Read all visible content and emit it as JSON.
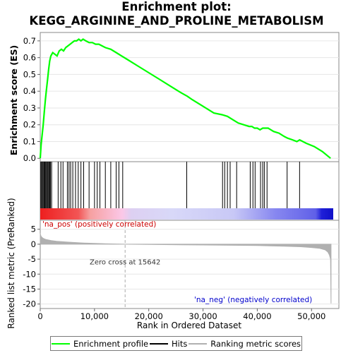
{
  "title": "Enrichment plot: KEGG_ARGININE_AND_PROLINE_METABOLISM",
  "colors": {
    "es_line": "#00ff00",
    "hits": "#000000",
    "metric": "#b0b0b0",
    "zero_cross_line": "#aaaaaa",
    "pos_end": "#ee2222",
    "neg_end": "#2222ee"
  },
  "chart_data": [
    {
      "name": "enrichment-score-panel",
      "type": "line",
      "ylabel": "Enrichment score (ES)",
      "xlim": [
        0,
        54000
      ],
      "ylim": [
        -0.02,
        0.75
      ],
      "yticks": [
        0.0,
        0.1,
        0.2,
        0.3,
        0.4,
        0.5,
        0.6,
        0.7
      ],
      "series": [
        {
          "name": "Enrichment profile",
          "x": [
            0,
            150,
            350,
            550,
            750,
            950,
            1150,
            1350,
            1550,
            1750,
            1950,
            2300,
            2700,
            3100,
            3500,
            3900,
            4300,
            4700,
            5100,
            5500,
            5900,
            6300,
            6700,
            7100,
            7500,
            7900,
            8400,
            9000,
            9600,
            10200,
            10800,
            11400,
            12000,
            13000,
            14000,
            15000,
            16000,
            18000,
            20000,
            22000,
            24000,
            26000,
            27100,
            28000,
            30000,
            32000,
            33500,
            34500,
            35500,
            36500,
            37500,
            38500,
            39000,
            39500,
            40000,
            40500,
            41000,
            41500,
            42000,
            43000,
            44000,
            45000,
            45600,
            46500,
            47300,
            47800,
            49000,
            50500,
            52000,
            53500
          ],
          "y": [
            0.0,
            0.08,
            0.14,
            0.2,
            0.28,
            0.35,
            0.41,
            0.47,
            0.53,
            0.58,
            0.61,
            0.63,
            0.62,
            0.61,
            0.64,
            0.65,
            0.64,
            0.66,
            0.67,
            0.68,
            0.69,
            0.7,
            0.7,
            0.71,
            0.7,
            0.71,
            0.7,
            0.69,
            0.69,
            0.68,
            0.68,
            0.67,
            0.66,
            0.65,
            0.63,
            0.61,
            0.59,
            0.55,
            0.51,
            0.47,
            0.43,
            0.39,
            0.37,
            0.35,
            0.31,
            0.27,
            0.26,
            0.25,
            0.23,
            0.21,
            0.2,
            0.19,
            0.19,
            0.18,
            0.18,
            0.17,
            0.18,
            0.18,
            0.18,
            0.16,
            0.15,
            0.13,
            0.12,
            0.11,
            0.1,
            0.11,
            0.09,
            0.07,
            0.04,
            0.0
          ]
        }
      ]
    },
    {
      "name": "hits-panel",
      "type": "scatter",
      "series": [
        {
          "name": "Hits",
          "x": [
            100,
            250,
            400,
            550,
            700,
            850,
            1000,
            1150,
            1300,
            1450,
            1600,
            1750,
            1900,
            2100,
            3300,
            3800,
            4200,
            5000,
            5300,
            5600,
            6000,
            6500,
            7000,
            7500,
            8000,
            9000,
            10000,
            10500,
            11000,
            12000,
            13000,
            14000,
            14500,
            15200,
            27000,
            33600,
            34000,
            34500,
            35000,
            36200,
            38700,
            39200,
            39600,
            40600,
            41000,
            41300,
            41800,
            45500,
            47800
          ]
        }
      ]
    },
    {
      "name": "ranked-metric-panel",
      "type": "area",
      "ylabel": "Ranked list metric (PreRanked)",
      "xlabel": "Rank in Ordered Dataset",
      "xlim": [
        0,
        54000
      ],
      "ylim": [
        -21.5,
        8.0
      ],
      "xticks": [
        0,
        10000,
        20000,
        30000,
        40000,
        50000
      ],
      "xticklabels": [
        "0",
        "10,000",
        "20,000",
        "30,000",
        "40,000",
        "50,000"
      ],
      "yticks": [
        5,
        0,
        -5,
        -10,
        -15,
        -20
      ],
      "annotations": {
        "zero_cross_x": 15642,
        "zero_cross_label": "Zero cross at 15642",
        "pos_label": "'na_pos' (positively correlated)",
        "neg_label": "'na_neg' (negatively correlated)"
      },
      "series": [
        {
          "name": "Ranking metric scores",
          "x": [
            0,
            100,
            300,
            600,
            1000,
            2000,
            3000,
            5000,
            8000,
            12000,
            15642,
            20000,
            30000,
            40000,
            45000,
            48000,
            50000,
            51500,
            52500,
            53000,
            53300,
            53500,
            53600
          ],
          "y": [
            3.6,
            2.8,
            2.3,
            1.9,
            1.6,
            1.2,
            1.0,
            0.7,
            0.4,
            0.15,
            0.0,
            -0.1,
            -0.25,
            -0.45,
            -0.65,
            -0.85,
            -1.1,
            -1.4,
            -1.9,
            -2.6,
            -3.6,
            -5.0,
            -19.8
          ]
        }
      ]
    }
  ],
  "legend": {
    "entries": [
      {
        "label": "Enrichment profile"
      },
      {
        "label": "Hits"
      },
      {
        "label": "Ranking metric scores"
      }
    ]
  }
}
